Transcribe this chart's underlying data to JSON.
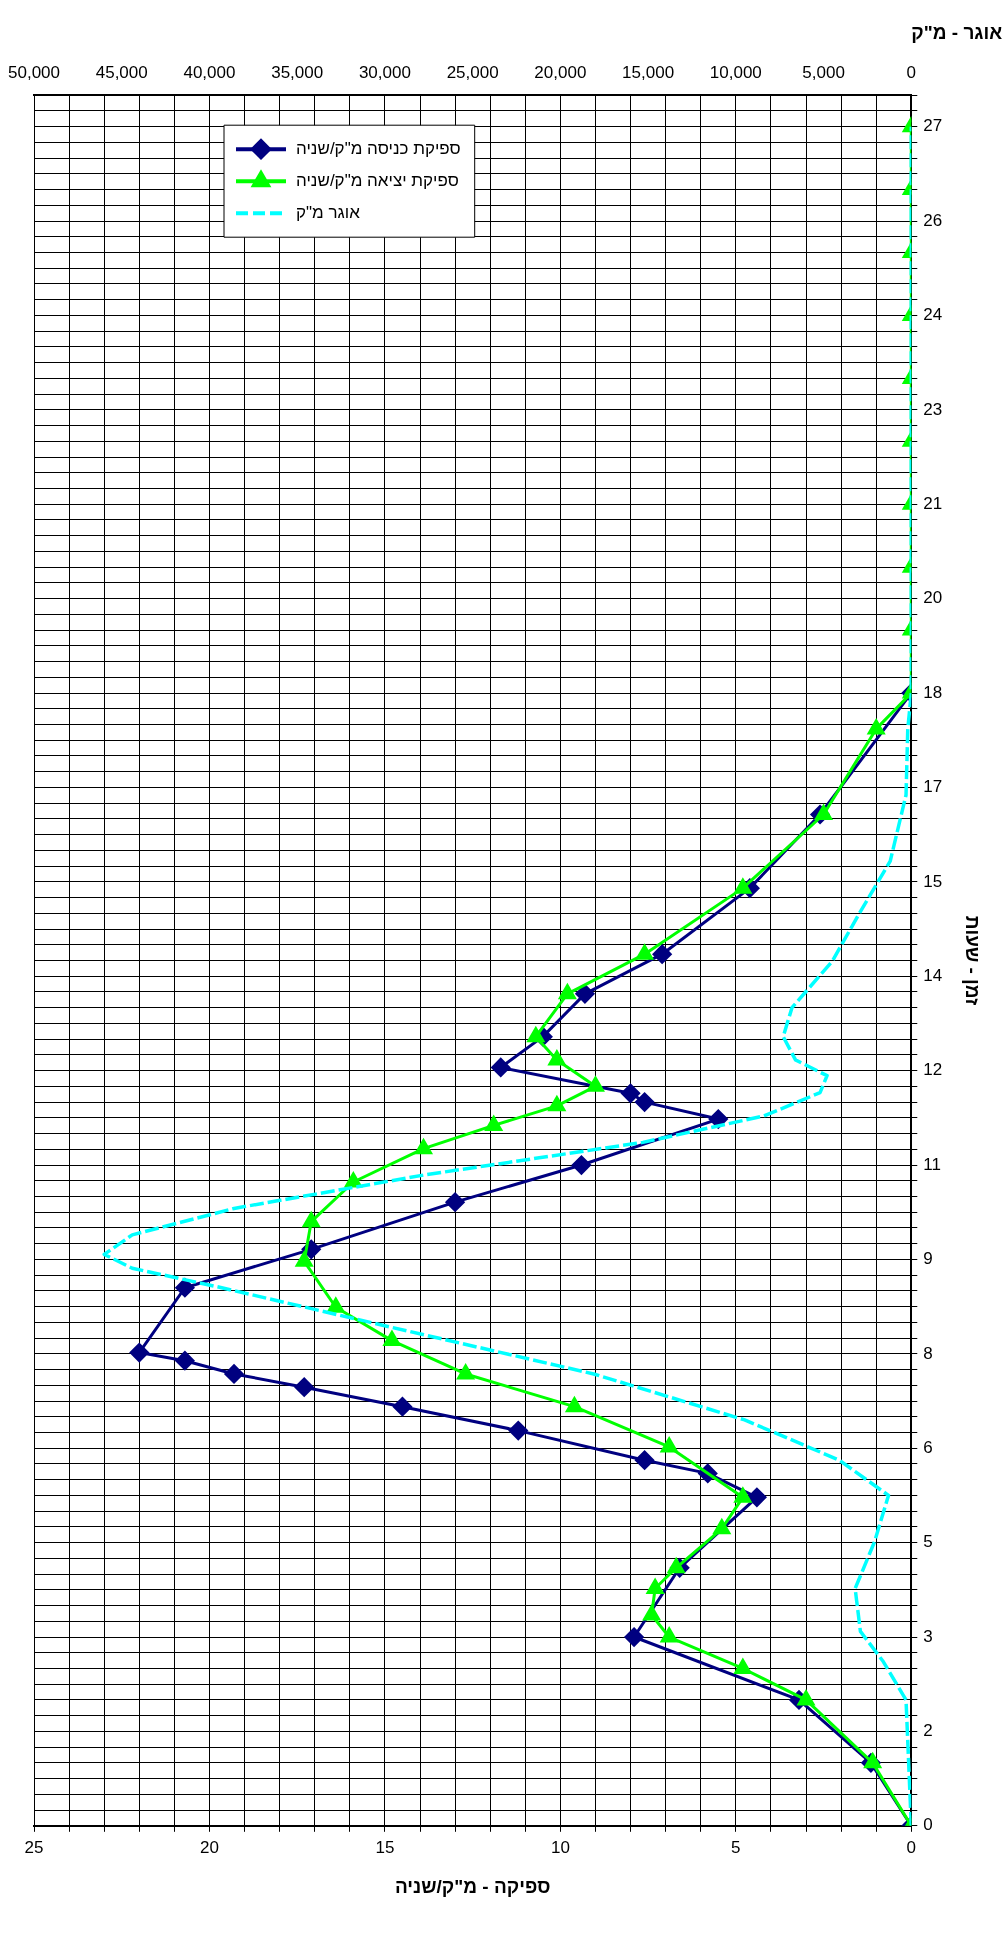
{
  "chart_data": {
    "type": "line",
    "orientation": "horizontal",
    "ylabel": "זמן - שעות",
    "xlabel": "ספיקה - מ\"ק/שניה",
    "x2label": "אוגר - מ\"ק",
    "ylim": [
      0,
      27.5
    ],
    "yticks": [
      0,
      {
        "value": 0.25,
        "label": null
      },
      {
        "value": 0.5,
        "label": null
      },
      {
        "value": 0.75,
        "label": null
      },
      {
        "value": 1,
        "label": null
      },
      {
        "value": 1.25,
        "label": null
      },
      {
        "value": 1.5,
        "label": "2"
      },
      {
        "value": 1.75,
        "label": null
      },
      {
        "value": 2,
        "label": null
      },
      {
        "value": 2.25,
        "label": null
      },
      {
        "value": 2.5,
        "label": null
      },
      {
        "value": 2.75,
        "label": null
      },
      3,
      {
        "value": 3.25,
        "label": null
      },
      {
        "value": 3.5,
        "label": null
      },
      {
        "value": 3.75,
        "label": null
      },
      {
        "value": 4,
        "label": null
      },
      {
        "value": 4.25,
        "label": null
      },
      {
        "value": 4.5,
        "label": "5"
      },
      {
        "value": 4.75,
        "label": null
      },
      {
        "value": 5,
        "label": null
      },
      {
        "value": 5.25,
        "label": null
      },
      {
        "value": 5.5,
        "label": null
      },
      {
        "value": 5.75,
        "label": null
      },
      6,
      {
        "value": 6.25,
        "label": null
      },
      {
        "value": 6.5,
        "label": null
      },
      {
        "value": 6.75,
        "label": null
      },
      {
        "value": 7,
        "label": null
      },
      {
        "value": 7.25,
        "label": null
      },
      {
        "value": 7.5,
        "label": "8"
      },
      {
        "value": 7.75,
        "label": null
      },
      {
        "value": 8,
        "label": null
      },
      {
        "value": 8.25,
        "label": null
      },
      {
        "value": 8.5,
        "label": null
      },
      {
        "value": 8.75,
        "label": null
      },
      9,
      {
        "value": 9.25,
        "label": null
      },
      {
        "value": 9.5,
        "label": null
      },
      {
        "value": 9.75,
        "label": null
      },
      {
        "value": 10,
        "label": null
      },
      {
        "value": 10.25,
        "label": null
      },
      {
        "value": 10.5,
        "label": "11"
      },
      {
        "value": 10.75,
        "label": null
      },
      {
        "value": 11,
        "label": null
      },
      {
        "value": 11.25,
        "label": null
      },
      {
        "value": 11.5,
        "label": null
      },
      {
        "value": 11.75,
        "label": null
      },
      12,
      {
        "value": 12.25,
        "label": null
      },
      {
        "value": 12.5,
        "label": null
      },
      {
        "value": 12.75,
        "label": null
      },
      {
        "value": 13,
        "label": null
      },
      {
        "value": 13.25,
        "label": null
      },
      {
        "value": 13.5,
        "label": "14"
      },
      {
        "value": 13.75,
        "label": null
      },
      {
        "value": 14,
        "label": null
      },
      {
        "value": 14.25,
        "label": null
      },
      {
        "value": 14.5,
        "label": null
      },
      {
        "value": 14.75,
        "label": null
      },
      15,
      {
        "value": 15.25,
        "label": null
      },
      {
        "value": 15.5,
        "label": null
      },
      {
        "value": 15.75,
        "label": null
      },
      {
        "value": 16,
        "label": null
      },
      {
        "value": 16.25,
        "label": null
      },
      {
        "value": 16.5,
        "label": "17"
      },
      {
        "value": 16.75,
        "label": null
      },
      {
        "value": 17,
        "label": null
      },
      {
        "value": 17.25,
        "label": null
      },
      {
        "value": 17.5,
        "label": null
      },
      {
        "value": 17.75,
        "label": null
      },
      18,
      {
        "value": 18.25,
        "label": null
      },
      {
        "value": 18.5,
        "label": null
      },
      {
        "value": 18.75,
        "label": null
      },
      {
        "value": 19,
        "label": null
      },
      {
        "value": 19.25,
        "label": null
      },
      {
        "value": 19.5,
        "label": "20"
      },
      {
        "value": 19.75,
        "label": null
      },
      {
        "value": 20,
        "label": null
      },
      {
        "value": 20.25,
        "label": null
      },
      {
        "value": 20.5,
        "label": null
      },
      {
        "value": 20.75,
        "label": null
      },
      21,
      {
        "value": 21.25,
        "label": null
      },
      {
        "value": 21.5,
        "label": null
      },
      {
        "value": 21.75,
        "label": null
      },
      {
        "value": 22,
        "label": null
      },
      {
        "value": 22.25,
        "label": null
      },
      {
        "value": 22.5,
        "label": "23"
      },
      {
        "value": 22.75,
        "label": null
      },
      {
        "value": 23,
        "label": null
      },
      {
        "value": 23.25,
        "label": null
      },
      {
        "value": 23.5,
        "label": null
      },
      {
        "value": 23.75,
        "label": null
      },
      24,
      {
        "value": 24.25,
        "label": null
      },
      {
        "value": 24.5,
        "label": null
      },
      {
        "value": 24.75,
        "label": null
      },
      {
        "value": 25,
        "label": null
      },
      {
        "value": 25.25,
        "label": null
      },
      {
        "value": 25.5,
        "label": "26"
      },
      {
        "value": 25.75,
        "label": null
      },
      {
        "value": 26,
        "label": null
      },
      {
        "value": 26.25,
        "label": null
      },
      {
        "value": 26.5,
        "label": null
      },
      {
        "value": 26.75,
        "label": null
      },
      27,
      {
        "value": 27.25,
        "label": null
      },
      {
        "value": 27.5,
        "label": null
      }
    ],
    "xlim": [
      25,
      0
    ],
    "xticks": [
      0,
      {
        "value": 1,
        "label": null
      },
      {
        "value": 2,
        "label": null
      },
      {
        "value": 3,
        "label": null
      },
      {
        "value": 4,
        "label": null
      },
      5,
      {
        "value": 6,
        "label": null
      },
      {
        "value": 7,
        "label": null
      },
      {
        "value": 8,
        "label": null
      },
      {
        "value": 9,
        "label": null
      },
      10,
      {
        "value": 11,
        "label": null
      },
      {
        "value": 12,
        "label": null
      },
      {
        "value": 13,
        "label": null
      },
      {
        "value": 14,
        "label": null
      },
      15,
      {
        "value": 16,
        "label": null
      },
      {
        "value": 17,
        "label": null
      },
      {
        "value": 18,
        "label": null
      },
      {
        "value": 19,
        "label": null
      },
      20,
      {
        "value": 21,
        "label": null
      },
      {
        "value": 22,
        "label": null
      },
      {
        "value": 23,
        "label": null
      },
      {
        "value": 24,
        "label": null
      },
      25
    ],
    "x2lim": [
      50000,
      0
    ],
    "x2ticks": [
      0,
      {
        "value": 5000,
        "label": "5,000"
      },
      {
        "value": 10000,
        "label": "10,000"
      },
      {
        "value": 15000,
        "label": "15,000"
      },
      {
        "value": 20000,
        "label": "20,000"
      },
      {
        "value": 25000,
        "label": "25,000"
      },
      {
        "value": 30000,
        "label": "30,000"
      },
      {
        "value": 35000,
        "label": "35,000"
      },
      {
        "value": 40000,
        "label": "40,000"
      },
      {
        "value": 45000,
        "label": "45,000"
      },
      {
        "value": 50000,
        "label": "50,000"
      }
    ],
    "grid": true,
    "legend": "top left",
    "series": [
      {
        "name": "ספיקת כניסה מ\"ק/שניה",
        "color": "#000080",
        "marker": "diamond",
        "line_style": "solid",
        "x": [
          0,
          1,
          2,
          3,
          4.1,
          5.22,
          5.6,
          5.81,
          6.28,
          6.66,
          6.97,
          7.18,
          7.39,
          7.52,
          8.55,
          9.16,
          9.91,
          10.5,
          11.23,
          11.5,
          11.64,
          12.05,
          12.54,
          13.22,
          13.85,
          14.9,
          16.07,
          18
        ],
        "values": [
          0,
          1.15,
          3.2,
          7.9,
          6.6,
          4.4,
          5.8,
          7.6,
          11.2,
          14.5,
          17.3,
          19.3,
          20.7,
          22,
          20.7,
          17.1,
          13,
          9.4,
          5.5,
          7.6,
          8,
          11.7,
          10.5,
          9.3,
          7.1,
          4.6,
          2.6,
          0
        ]
      },
      {
        "name": "ספיקת יציאה מ\"ק/שניה",
        "color": "#00ff00",
        "marker": "triangle",
        "line_style": "solid",
        "x": [
          0,
          1,
          2,
          2.5,
          3,
          3.35,
          3.77,
          4.1,
          4.72,
          5.22,
          6.02,
          6.66,
          7.18,
          7.71,
          8.24,
          8.97,
          9.6,
          10.23,
          10.76,
          11.13,
          11.44,
          11.75,
          12.17,
          12.54,
          13.22,
          13.85,
          14.9,
          16.07,
          17.43,
          18,
          19,
          20,
          21,
          22,
          23,
          24,
          25,
          26,
          27
        ],
        "values": [
          0,
          1.1,
          3,
          4.8,
          6.9,
          7.4,
          7.3,
          6.7,
          5.4,
          4.8,
          6.9,
          9.6,
          12.7,
          14.8,
          16.4,
          17.3,
          17.1,
          15.9,
          13.9,
          11.9,
          10.1,
          9,
          10.1,
          10.7,
          9.8,
          7.6,
          4.8,
          2.5,
          1,
          0,
          0,
          0,
          0,
          0,
          0,
          0,
          0,
          0,
          0
        ]
      },
      {
        "name": "אוגר מ\"ק",
        "color": "#00ffff",
        "marker": "none",
        "line_style": "dashed",
        "axis": "x2",
        "x": [
          0,
          2,
          2.61,
          3.09,
          3.77,
          4.51,
          5.25,
          5.81,
          6.45,
          7.18,
          7.92,
          8.55,
          8.86,
          9.08,
          9.39,
          9.81,
          10.34,
          10.86,
          11.28,
          11.65,
          11.92,
          12.17,
          12.54,
          13,
          13.74,
          14.48,
          15.33,
          16.38,
          17.43,
          18,
          20,
          22,
          24,
          26,
          27
        ],
        "values": [
          0,
          300,
          1600,
          2900,
          3200,
          2100,
          1300,
          4100,
          9500,
          18100,
          29600,
          39300,
          44400,
          46000,
          44400,
          38600,
          27800,
          15300,
          8400,
          5200,
          4800,
          6600,
          7300,
          6800,
          4500,
          3000,
          1200,
          300,
          200,
          0,
          0,
          0,
          0,
          0,
          0
        ]
      }
    ]
  }
}
